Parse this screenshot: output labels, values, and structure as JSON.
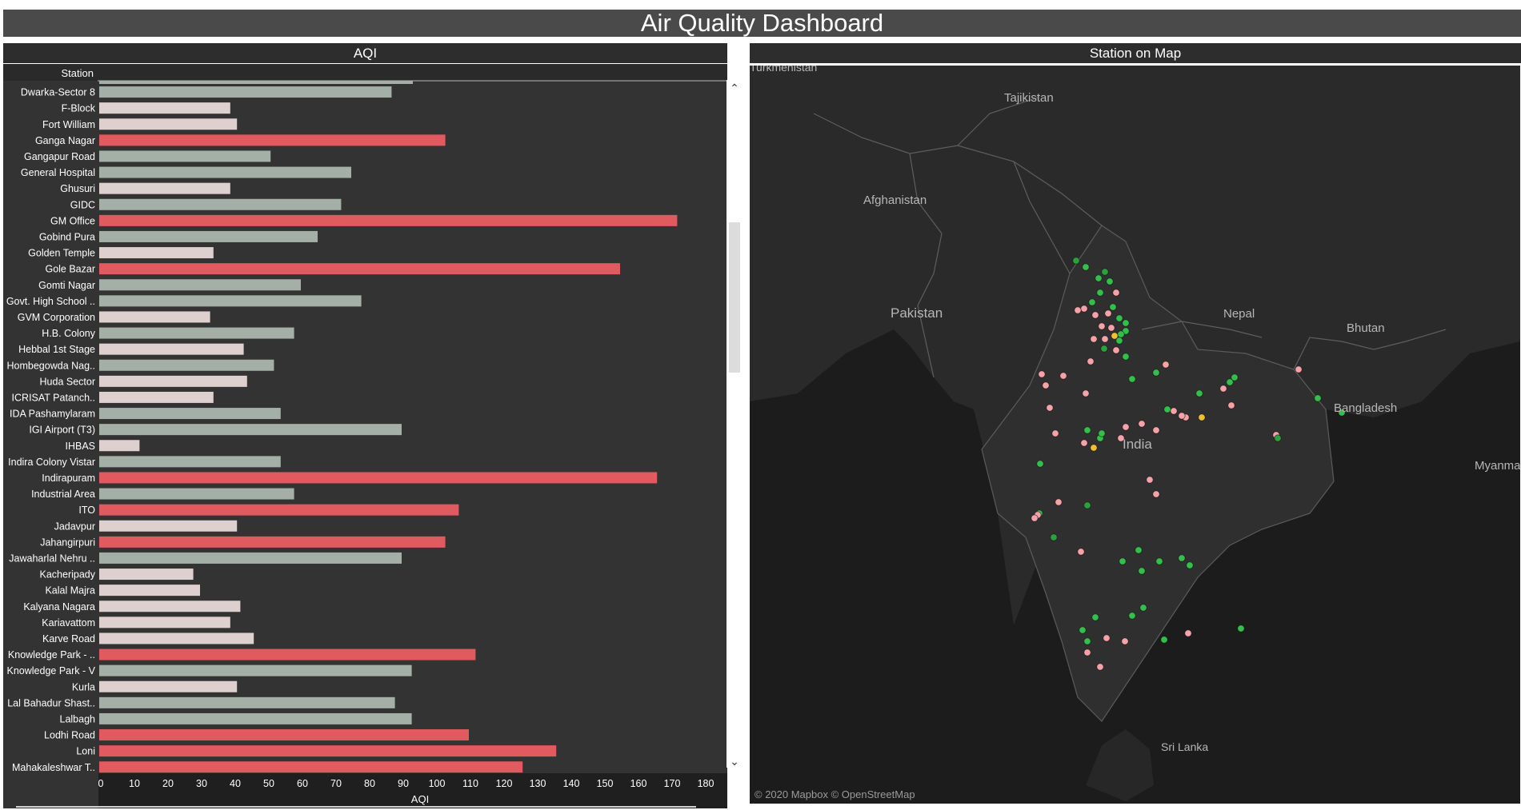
{
  "dashboard": {
    "title": "Air Quality Dashboard"
  },
  "aqi_panel": {
    "title": "AQI",
    "station_header": "Station",
    "x_axis_title": "AQI"
  },
  "map_panel": {
    "title": "Station on Map",
    "credit": "© 2020 Mapbox © OpenStreetMap",
    "labels": [
      "Turkmenistan",
      "Tajikistan",
      "Afghanistan",
      "Pakistan",
      "Nepal",
      "Bhutan",
      "India",
      "Bangladesh",
      "Myanmar",
      "Sri Lanka"
    ]
  },
  "colors": {
    "high": "#e05a5f",
    "mid": "#a4afa8",
    "low": "#ddd0cf",
    "panel": "#333333",
    "header": "#2d2d2d"
  },
  "chart_data": {
    "type": "bar",
    "orientation": "horizontal",
    "xlabel": "AQI",
    "ylabel": "Station",
    "xlim": [
      0,
      185
    ],
    "xticks": [
      0,
      10,
      20,
      30,
      40,
      50,
      60,
      70,
      80,
      90,
      100,
      110,
      120,
      130,
      140,
      150,
      160,
      170,
      180
    ],
    "categories": [
      "Dwarka-Sector 8",
      "F-Block",
      "Fort William",
      "Ganga Nagar",
      "Gangapur Road",
      "General Hospital",
      "Ghusuri",
      "GIDC",
      "GM Office",
      "Gobind Pura",
      "Golden Temple",
      "Gole Bazar",
      "Gomti Nagar",
      "Govt. High School ..",
      "GVM Corporation",
      "H.B. Colony",
      "Hebbal 1st Stage",
      "Hombegowda Nag..",
      "Huda Sector",
      "ICRISAT Patanch..",
      "IDA Pashamylaram",
      "IGI Airport (T3)",
      "IHBAS",
      "Indira Colony Vistar",
      "Indirapuram",
      "Industrial Area",
      "ITO",
      "Jadavpur",
      "Jahangirpuri",
      "Jawaharlal Nehru ..",
      "Kacheripady",
      "Kalal Majra",
      "Kalyana Nagara",
      "Kariavattom",
      "Karve Road",
      "Knowledge Park - ..",
      "Knowledge Park - V",
      "Kurla",
      "Lal Bahadur Shast..",
      "Lalbagh",
      "Lodhi Road",
      "Loni",
      "Mahakaleshwar T.."
    ],
    "values": [
      87,
      39,
      41,
      103,
      51,
      75,
      39,
      72,
      172,
      65,
      34,
      155,
      60,
      78,
      33,
      58,
      43,
      52,
      44,
      34,
      54,
      90,
      12,
      54,
      166,
      58,
      107,
      41,
      103,
      90,
      28,
      30,
      42,
      39,
      46,
      112,
      93,
      41,
      88,
      93,
      110,
      136,
      126
    ],
    "color_groups": [
      "mid",
      "low",
      "low",
      "high",
      "mid",
      "mid",
      "low",
      "mid",
      "high",
      "mid",
      "low",
      "high",
      "mid",
      "mid",
      "low",
      "mid",
      "low",
      "mid",
      "low",
      "low",
      "mid",
      "mid",
      "low",
      "mid",
      "high",
      "mid",
      "high",
      "low",
      "high",
      "mid",
      "low",
      "low",
      "low",
      "low",
      "low",
      "high",
      "mid",
      "low",
      "mid",
      "mid",
      "high",
      "high",
      "high"
    ]
  }
}
